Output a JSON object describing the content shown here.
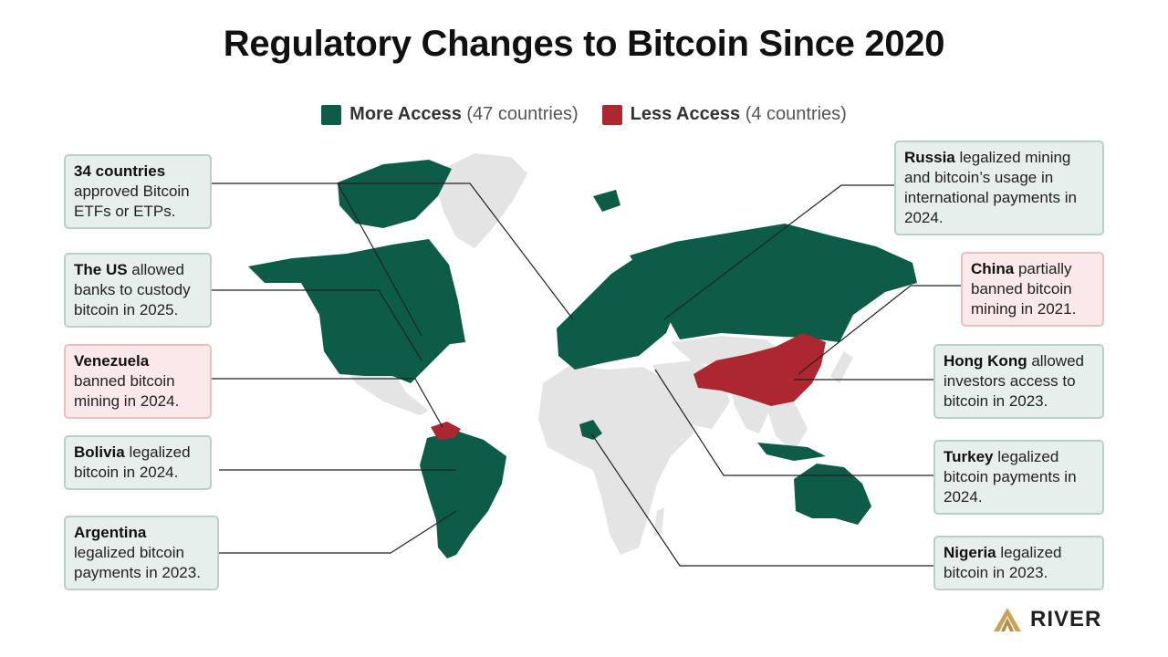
{
  "title": "Regulatory Changes to Bitcoin Since 2020",
  "legend": {
    "more": {
      "name": "More Access",
      "count": "(47 countries)"
    },
    "less": {
      "name": "Less Access",
      "count": "(4 countries)"
    }
  },
  "colors": {
    "more": "#0d5c48",
    "less": "#ad2730",
    "neutral": "#e4e4e4",
    "leader": "#222222"
  },
  "callouts": {
    "etf": {
      "bold": "34 countries",
      "text": "approved Bitcoin ETFs or ETPs."
    },
    "us": {
      "bold": "The US",
      "text": "allowed banks to custody bitcoin in 2025."
    },
    "venezuela": {
      "bold": "Venezuela",
      "text": "banned bitcoin mining in 2024."
    },
    "bolivia": {
      "bold": "Bolivia",
      "text": "legalized bitcoin in 2024."
    },
    "argentina": {
      "bold": "Argentina",
      "text": "legalized bitcoin payments in 2023."
    },
    "russia": {
      "bold": "Russia",
      "text": "legalized mining and bitcoin’s usage in international payments in 2024."
    },
    "china": {
      "bold": "China",
      "text": "partially banned bitcoin mining in 2021."
    },
    "hongkong": {
      "bold": "Hong Kong",
      "text": "allowed investors access to bitcoin in 2023."
    },
    "turkey": {
      "bold": "Turkey",
      "text": "legalized bitcoin payments in 2024."
    },
    "nigeria": {
      "bold": "Nigeria",
      "text": "legalized bitcoin in 2023."
    }
  },
  "brand": {
    "name": "RIVER",
    "icon": "river-logo-icon"
  }
}
